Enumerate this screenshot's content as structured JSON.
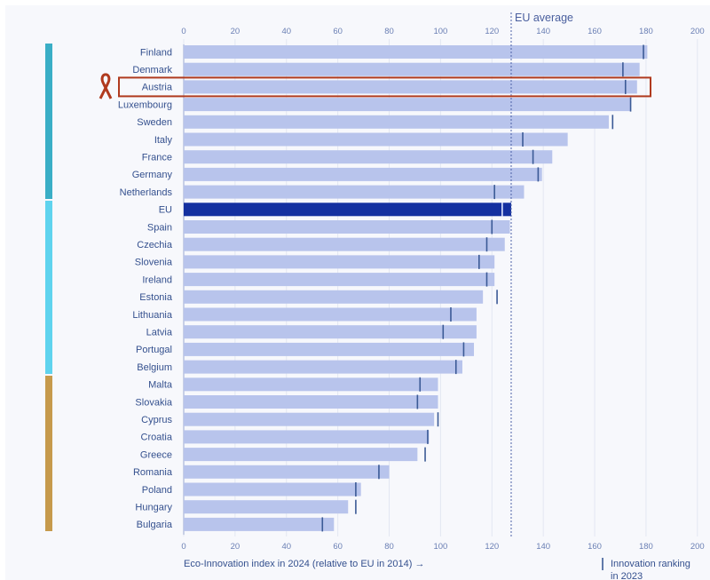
{
  "chart_data": {
    "type": "bar",
    "orientation": "horizontal",
    "categories": [
      "Finland",
      "Denmark",
      "Austria",
      "Luxembourg",
      "Sweden",
      "Italy",
      "France",
      "Germany",
      "Netherlands",
      "EU",
      "Spain",
      "Czechia",
      "Slovenia",
      "Ireland",
      "Estonia",
      "Lithuania",
      "Latvia",
      "Portugal",
      "Belgium",
      "Malta",
      "Slovakia",
      "Cyprus",
      "Croatia",
      "Greece",
      "Romania",
      "Poland",
      "Hungary",
      "Bulgaria"
    ],
    "series": [
      {
        "values": [
          180.5,
          177.5,
          176.5,
          174,
          165.5,
          149.5,
          143.5,
          139.5,
          132.5,
          127.5,
          127,
          125,
          121,
          121,
          116.5,
          114,
          114,
          113,
          108.5,
          99,
          99,
          97.5,
          95.5,
          91,
          80,
          69,
          64,
          58.5
        ]
      },
      {
        "name": "Innovation ranking in 2023",
        "values": [
          179,
          171,
          172,
          174,
          167,
          132,
          136,
          138,
          121,
          124,
          120,
          118,
          115,
          118,
          122,
          104,
          101,
          109,
          106,
          92,
          91,
          99,
          95,
          94,
          76,
          67,
          67,
          54
        ]
      }
    ],
    "x_ticks": [
      "0",
      "20",
      "40",
      "60",
      "80",
      "100",
      "120",
      "140",
      "160",
      "180",
      "200"
    ],
    "xlim": [
      0,
      200
    ],
    "reference_line": {
      "label": "EU average",
      "value": 127.5
    },
    "highlight": "Austria",
    "groups": [
      {
        "color": "#3aaec6",
        "members": [
          "Finland",
          "Denmark",
          "Austria",
          "Luxembourg",
          "Sweden",
          "Italy",
          "France",
          "Germany",
          "Netherlands"
        ]
      },
      {
        "color": "#5fd3ee",
        "members": [
          "EU",
          "Spain",
          "Czechia",
          "Slovenia",
          "Ireland",
          "Estonia",
          "Lithuania",
          "Latvia",
          "Portugal",
          "Belgium"
        ]
      },
      {
        "color": "#c69a4c",
        "members": [
          "Malta",
          "Slovakia",
          "Cyprus",
          "Croatia",
          "Greece",
          "Romania",
          "Poland",
          "Hungary",
          "Bulgaria"
        ]
      }
    ],
    "xlabel": "Eco-Innovation index in 2024 (relative to EU in 2014) →",
    "marker_legend": "Innovation ranking in 2023",
    "grid": true,
    "colors": {
      "bar": "#b8c4ec",
      "eu_bar": "#1430a0",
      "marker": "#3b5a96",
      "highlight_box": "#b03a1e",
      "axis_text": "#6a7fb4",
      "label_text": "#34508e"
    }
  }
}
